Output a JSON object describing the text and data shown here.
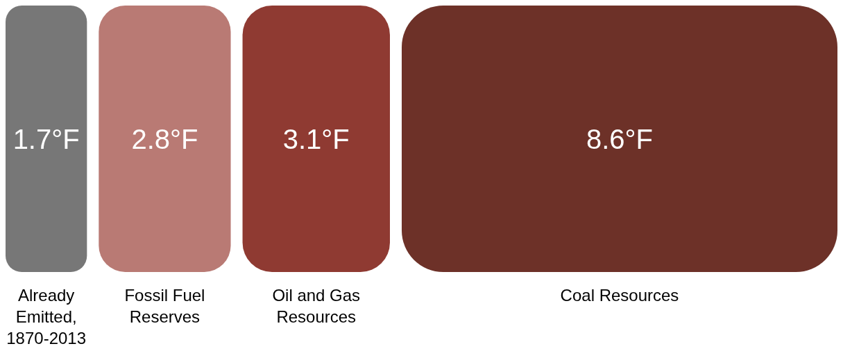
{
  "chart_data": {
    "type": "other",
    "categories": [
      "Already Emitted, 1870-2013",
      "Fossil Fuel Reserves",
      "Oil and Gas Resources",
      "Coal Resources"
    ],
    "values": [
      1.7,
      2.8,
      3.1,
      8.6
    ],
    "value_labels": [
      "1.7°F",
      "2.8°F",
      "3.1°F",
      "8.6°F"
    ],
    "colors": [
      "#777777",
      "#b97a74",
      "#8f3a32",
      "#6d3128"
    ]
  }
}
